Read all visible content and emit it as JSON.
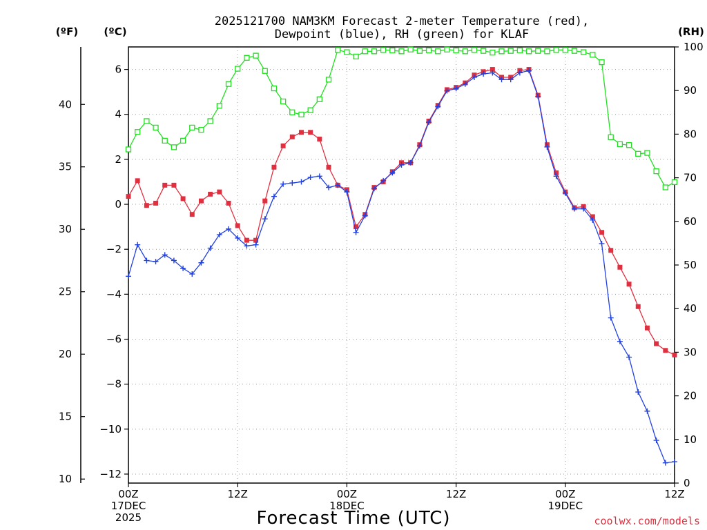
{
  "chart_data": {
    "type": "line",
    "title_lines": [
      "2025121700 NAM3KM Forecast 2-meter Temperature (red),",
      "Dewpoint (blue), RH (green) for KLAF"
    ],
    "xlabel": "Forecast Time (UTC)",
    "credit": "coolwx.com/models",
    "units": {
      "fahrenheit": "(ºF)",
      "celsius": "(ºC)",
      "rh": "(RH)"
    },
    "x_ticks": [
      {
        "hour": 0,
        "lines": [
          "00Z",
          "17DEC",
          "2025"
        ]
      },
      {
        "hour": 12,
        "lines": [
          "12Z"
        ]
      },
      {
        "hour": 24,
        "lines": [
          "00Z",
          "18DEC"
        ]
      },
      {
        "hour": 36,
        "lines": [
          "12Z"
        ]
      },
      {
        "hour": 48,
        "lines": [
          "00Z",
          "19DEC"
        ]
      },
      {
        "hour": 60,
        "lines": [
          "12Z"
        ]
      }
    ],
    "xlim": [
      0,
      60
    ],
    "ylim_c": [
      -12.4,
      7.0
    ],
    "y_ticks_c": [
      "−12",
      "−10",
      "−8",
      "−6",
      "−4",
      "−2",
      "0",
      "2",
      "4",
      "6"
    ],
    "y_ticks_f": [
      "10",
      "15",
      "20",
      "25",
      "30",
      "35",
      "40"
    ],
    "ylim_rh": [
      0,
      100
    ],
    "y_ticks_rh": [
      "0",
      "10",
      "20",
      "30",
      "40",
      "50",
      "60",
      "70",
      "80",
      "90",
      "100"
    ],
    "hours": [
      0,
      1,
      2,
      3,
      4,
      5,
      6,
      7,
      8,
      9,
      10,
      11,
      12,
      13,
      14,
      15,
      16,
      17,
      18,
      19,
      20,
      21,
      22,
      23,
      24,
      25,
      26,
      27,
      28,
      29,
      30,
      31,
      32,
      33,
      34,
      35,
      36,
      37,
      38,
      39,
      40,
      41,
      42,
      43,
      44,
      45,
      46,
      47,
      48,
      49,
      50,
      51,
      52,
      53,
      54,
      55,
      56,
      57,
      58,
      59,
      60
    ],
    "series": [
      {
        "name": "Temperature",
        "color": "#e03040",
        "marker": "filled-square",
        "units": "degC",
        "values": [
          0.35,
          1.05,
          -0.05,
          0.05,
          0.85,
          0.85,
          0.25,
          -0.45,
          0.15,
          0.45,
          0.55,
          0.05,
          -0.95,
          -1.6,
          -1.6,
          0.15,
          1.65,
          2.6,
          3.0,
          3.2,
          3.2,
          2.9,
          1.65,
          0.85,
          0.65,
          -1.0,
          -0.45,
          0.75,
          1.0,
          1.45,
          1.85,
          1.85,
          2.65,
          3.7,
          4.4,
          5.1,
          5.2,
          5.4,
          5.75,
          5.9,
          6.0,
          5.65,
          5.65,
          5.95,
          6.0,
          4.85,
          2.65,
          1.4,
          0.55,
          -0.15,
          -0.1,
          -0.55,
          -1.25,
          -2.05,
          -2.8,
          -3.55,
          -4.55,
          -5.5,
          -6.2,
          -6.5,
          -6.7
        ]
      },
      {
        "name": "Dewpoint",
        "color": "#2040e0",
        "marker": "plus",
        "units": "degC",
        "values": [
          -3.2,
          -1.8,
          -2.5,
          -2.55,
          -2.25,
          -2.5,
          -2.85,
          -3.1,
          -2.6,
          -1.95,
          -1.35,
          -1.1,
          -1.5,
          -1.85,
          -1.8,
          -0.65,
          0.35,
          0.9,
          0.95,
          1.0,
          1.2,
          1.25,
          0.75,
          0.85,
          0.55,
          -1.25,
          -0.5,
          0.7,
          1.05,
          1.4,
          1.75,
          1.85,
          2.6,
          3.65,
          4.35,
          5.05,
          5.15,
          5.35,
          5.65,
          5.8,
          5.85,
          5.55,
          5.55,
          5.85,
          5.95,
          4.8,
          2.55,
          1.25,
          0.5,
          -0.2,
          -0.2,
          -0.7,
          -1.75,
          -5.05,
          -6.1,
          -6.8,
          -8.35,
          -9.2,
          -10.5,
          -11.5,
          -11.45
        ]
      },
      {
        "name": "RH",
        "color": "#20e020",
        "marker": "open-square",
        "units": "percent",
        "values": [
          76.5,
          80.5,
          83,
          81.5,
          78.5,
          77,
          78.5,
          81.5,
          81,
          83,
          86.5,
          91.5,
          95,
          97.5,
          98,
          94.5,
          90.5,
          87.5,
          85,
          84.5,
          85.5,
          88,
          92.5,
          99.3,
          98.8,
          97.8,
          99,
          99,
          99.3,
          99.2,
          99,
          99.4,
          99.1,
          99.2,
          99,
          99.4,
          99.2,
          99,
          99.3,
          99.1,
          98.7,
          99,
          99.1,
          99.2,
          99,
          99.1,
          99,
          99.3,
          99.3,
          99.1,
          98.8,
          98.2,
          96.5,
          79.3,
          77.7,
          77.5,
          75.5,
          75.7,
          71.5,
          67.8,
          69
        ]
      }
    ]
  }
}
